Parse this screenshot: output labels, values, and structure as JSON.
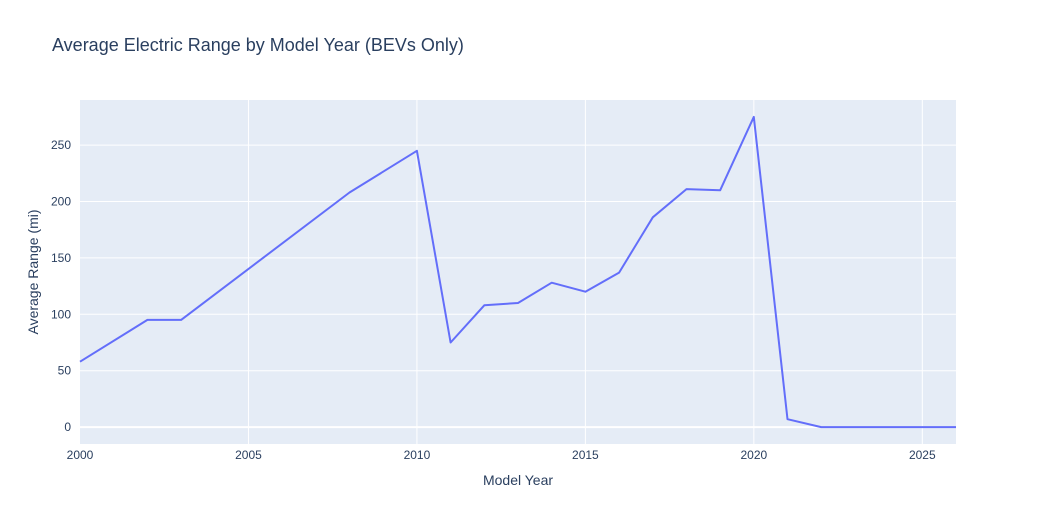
{
  "chart_data": {
    "type": "line",
    "title": "Average Electric Range by Model Year (BEVs Only)",
    "xlabel": "Model Year",
    "ylabel": "Average Range (mi)",
    "xlim": [
      2000,
      2026
    ],
    "ylim": [
      -15,
      290
    ],
    "x_ticks": [
      2000,
      2005,
      2010,
      2015,
      2020,
      2025
    ],
    "y_ticks": [
      0,
      50,
      100,
      150,
      200,
      250
    ],
    "grid": true,
    "legend": "none",
    "colors": {
      "line": "#636efa",
      "plot_bg": "#e5ecf6",
      "grid": "#ffffff",
      "text": "#2a3f5f"
    },
    "series": [
      {
        "x": [
          2000,
          2002,
          2003,
          2008,
          2010,
          2011,
          2012,
          2013,
          2014,
          2015,
          2016,
          2017,
          2018,
          2019,
          2020,
          2021,
          2022,
          2023,
          2024,
          2025,
          2026
        ],
        "values": [
          58,
          95,
          95,
          208,
          245,
          75,
          108,
          110,
          128,
          120,
          137,
          186,
          211,
          210,
          275,
          7,
          0,
          0,
          0,
          0,
          0
        ]
      }
    ]
  }
}
